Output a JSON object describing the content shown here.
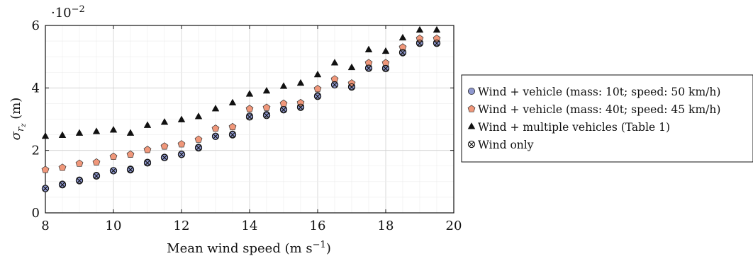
{
  "chart_data": {
    "type": "scatter",
    "xlabel": "Mean wind speed (m s−1)",
    "xlabel_main": "Mean wind speed (m s",
    "xlabel_sup": "−1",
    "xlabel_close": ")",
    "ylabel_main": "σ",
    "ylabel_sub1": "r",
    "ylabel_sub2": "z",
    "ylabel_unit": " (m)",
    "y_scale_base": "·10",
    "y_scale_exp": "−2",
    "xlim": [
      8,
      20
    ],
    "ylim": [
      0,
      6
    ],
    "x_ticks": [
      "8",
      "10",
      "12",
      "14",
      "16",
      "18",
      "20"
    ],
    "y_ticks": [
      "0",
      "2",
      "4",
      "6"
    ],
    "grid": true,
    "legend_position": "right",
    "x": [
      8,
      8.5,
      9,
      9.5,
      10,
      10.5,
      11,
      11.5,
      12,
      12.5,
      13,
      13.5,
      14,
      14.5,
      15,
      15.5,
      16,
      16.5,
      17,
      17.5,
      18,
      18.5,
      19,
      19.5
    ],
    "series": [
      {
        "name": "Wind + vehicle (mass: 10t; speed: 50 km/h)",
        "marker": "circle",
        "color": "#8f98cf",
        "values": [
          0.78,
          0.92,
          1.05,
          1.2,
          1.35,
          1.4,
          1.62,
          1.78,
          1.88,
          2.1,
          2.45,
          2.52,
          3.1,
          3.15,
          3.32,
          3.4,
          3.75,
          4.1,
          4.05,
          4.65,
          4.65,
          5.15,
          5.45,
          5.45
        ]
      },
      {
        "name": "Wind + vehicle (mass: 40t; speed: 45 km/h)",
        "marker": "pentagon",
        "color": "#f0977a",
        "values": [
          1.38,
          1.45,
          1.58,
          1.62,
          1.8,
          1.87,
          2.02,
          2.13,
          2.2,
          2.35,
          2.7,
          2.75,
          3.33,
          3.37,
          3.5,
          3.52,
          3.97,
          4.28,
          4.15,
          4.8,
          4.8,
          5.3,
          5.58,
          5.58
        ]
      },
      {
        "name": "Wind + multiple vehicles (Table 1)",
        "marker": "triangle",
        "color": "#111111",
        "values": [
          2.45,
          2.48,
          2.55,
          2.6,
          2.65,
          2.55,
          2.8,
          2.9,
          2.98,
          3.08,
          3.33,
          3.52,
          3.8,
          3.9,
          4.05,
          4.15,
          4.42,
          4.8,
          4.65,
          5.22,
          5.17,
          5.6,
          5.85,
          5.85
        ]
      },
      {
        "name": "Wind only",
        "marker": "otimes",
        "color": "#111111",
        "values": [
          0.78,
          0.9,
          1.03,
          1.18,
          1.35,
          1.38,
          1.6,
          1.77,
          1.87,
          2.08,
          2.45,
          2.5,
          3.07,
          3.12,
          3.3,
          3.38,
          3.73,
          4.1,
          4.03,
          4.63,
          4.62,
          5.13,
          5.43,
          5.43
        ]
      }
    ]
  }
}
